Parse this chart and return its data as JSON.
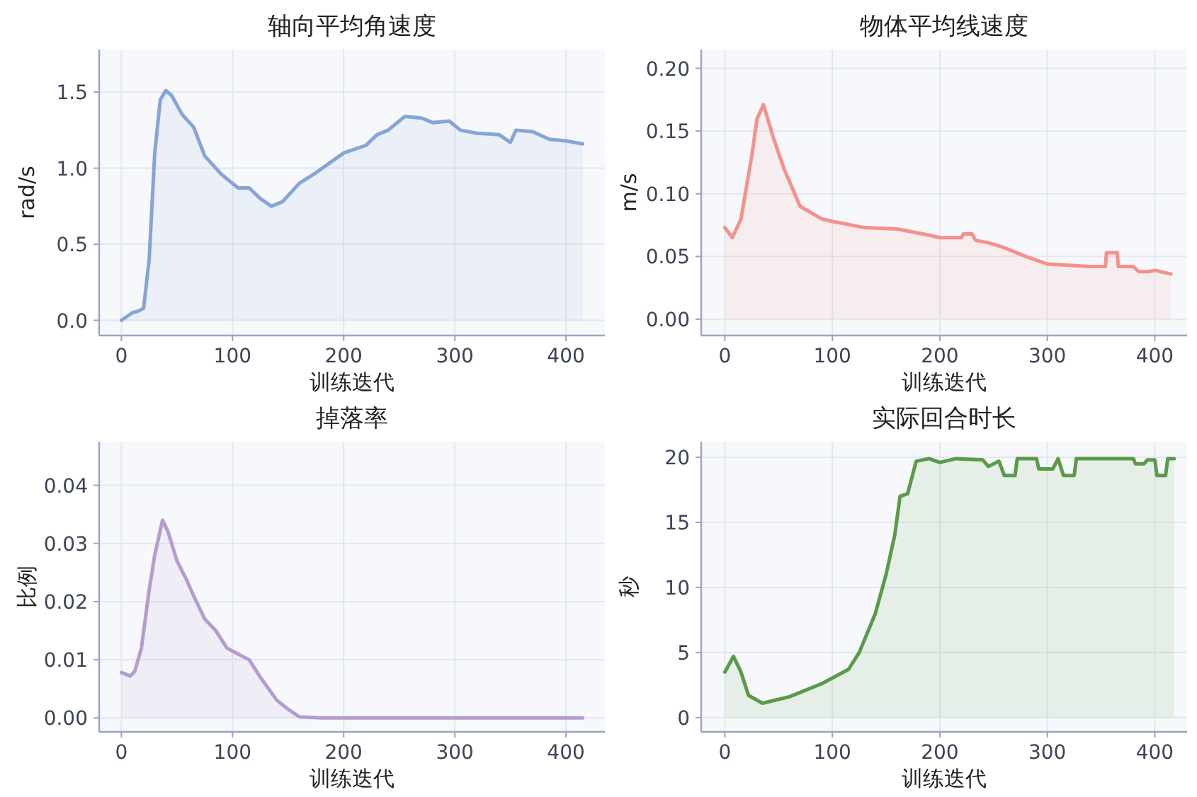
{
  "chart_data": [
    {
      "type": "area",
      "title": "轴向平均角速度",
      "xlabel": "训练迭代",
      "ylabel": "rad/s",
      "color": "#86a5d6",
      "grid": true,
      "xlim": [
        -20,
        435
      ],
      "ylim": [
        -0.1,
        1.78
      ],
      "xticks": [
        0,
        100,
        200,
        300,
        400
      ],
      "yticks": [
        {
          "value": 0,
          "label": "0.0"
        },
        0.5,
        {
          "value": 1,
          "label": "1.0"
        },
        1.5
      ],
      "x": [
        0,
        10,
        15,
        20,
        25,
        30,
        35,
        40,
        45,
        55,
        65,
        75,
        90,
        105,
        115,
        125,
        135,
        145,
        160,
        175,
        200,
        220,
        230,
        240,
        255,
        270,
        280,
        295,
        305,
        320,
        340,
        350,
        355,
        370,
        385,
        400,
        415
      ],
      "values": [
        0.0,
        0.05,
        0.06,
        0.08,
        0.4,
        1.1,
        1.45,
        1.51,
        1.48,
        1.35,
        1.27,
        1.08,
        0.96,
        0.87,
        0.87,
        0.8,
        0.75,
        0.78,
        0.9,
        0.97,
        1.1,
        1.15,
        1.22,
        1.25,
        1.34,
        1.33,
        1.3,
        1.31,
        1.25,
        1.23,
        1.22,
        1.17,
        1.25,
        1.24,
        1.19,
        1.18,
        1.16
      ]
    },
    {
      "type": "area",
      "title": "物体平均线速度",
      "xlabel": "训练迭代",
      "ylabel": "m/s",
      "color": "#f4918c",
      "grid": true,
      "xlim": [
        -22,
        430
      ],
      "ylim": [
        -0.013,
        0.215
      ],
      "xticks": [
        0,
        100,
        200,
        300,
        400
      ],
      "yticks": [
        {
          "value": 0,
          "label": "0.00"
        },
        0.05,
        {
          "value": 0.1,
          "label": "0.10"
        },
        0.15,
        {
          "value": 0.2,
          "label": "0.20"
        }
      ],
      "x": [
        0,
        7,
        15,
        25,
        30,
        36,
        45,
        55,
        70,
        90,
        100,
        130,
        160,
        190,
        200,
        220,
        222,
        230,
        233,
        245,
        260,
        280,
        300,
        340,
        354,
        355,
        365,
        366,
        380,
        385,
        395,
        400,
        415
      ],
      "values": [
        0.073,
        0.065,
        0.08,
        0.13,
        0.16,
        0.171,
        0.145,
        0.12,
        0.09,
        0.08,
        0.078,
        0.073,
        0.072,
        0.067,
        0.065,
        0.065,
        0.068,
        0.068,
        0.063,
        0.061,
        0.057,
        0.05,
        0.044,
        0.042,
        0.042,
        0.053,
        0.053,
        0.042,
        0.042,
        0.038,
        0.038,
        0.039,
        0.036
      ]
    },
    {
      "type": "area",
      "title": "掉落率",
      "xlabel": "训练迭代",
      "ylabel": "比例",
      "color": "#b59ccf",
      "grid": true,
      "xlim": [
        -20,
        435
      ],
      "ylim": [
        -0.0024,
        0.0475
      ],
      "xticks": [
        0,
        100,
        200,
        300,
        400
      ],
      "yticks": [
        {
          "value": 0,
          "label": "0.00"
        },
        0.01,
        0.02,
        0.03,
        0.04
      ],
      "x": [
        0,
        8,
        12,
        18,
        25,
        30,
        37,
        42,
        50,
        58,
        65,
        75,
        85,
        95,
        115,
        125,
        140,
        150,
        160,
        180,
        200,
        300,
        400,
        415
      ],
      "values": [
        0.0078,
        0.0072,
        0.008,
        0.012,
        0.022,
        0.028,
        0.034,
        0.032,
        0.027,
        0.024,
        0.021,
        0.017,
        0.015,
        0.012,
        0.01,
        0.007,
        0.003,
        0.0015,
        0.0002,
        0.0,
        0.0,
        0.0,
        0.0,
        0.0
      ]
    },
    {
      "type": "area",
      "title": "实际回合时长",
      "xlabel": "训练迭代",
      "ylabel": "秒",
      "color": "#5a9a48",
      "grid": true,
      "xlim": [
        -22,
        430
      ],
      "ylim": [
        -1.1,
        21.2
      ],
      "xticks": [
        0,
        100,
        200,
        300,
        400
      ],
      "yticks": [
        0,
        5,
        10,
        15,
        20
      ],
      "x": [
        0,
        8,
        15,
        22,
        35,
        60,
        90,
        115,
        125,
        140,
        150,
        158,
        163,
        170,
        178,
        190,
        200,
        215,
        240,
        245,
        255,
        260,
        270,
        272,
        290,
        292,
        305,
        310,
        315,
        325,
        327,
        380,
        382,
        390,
        393,
        400,
        402,
        410,
        412,
        418
      ],
      "values": [
        3.5,
        4.7,
        3.5,
        1.7,
        1.1,
        1.6,
        2.6,
        3.7,
        5.0,
        8.0,
        11,
        14,
        17,
        17.2,
        19.7,
        19.9,
        19.6,
        19.9,
        19.8,
        19.3,
        19.7,
        18.6,
        18.6,
        19.9,
        19.9,
        19.1,
        19.1,
        19.9,
        18.6,
        18.6,
        19.9,
        19.9,
        19.5,
        19.5,
        19.8,
        19.8,
        18.6,
        18.6,
        19.9,
        19.9
      ]
    }
  ]
}
